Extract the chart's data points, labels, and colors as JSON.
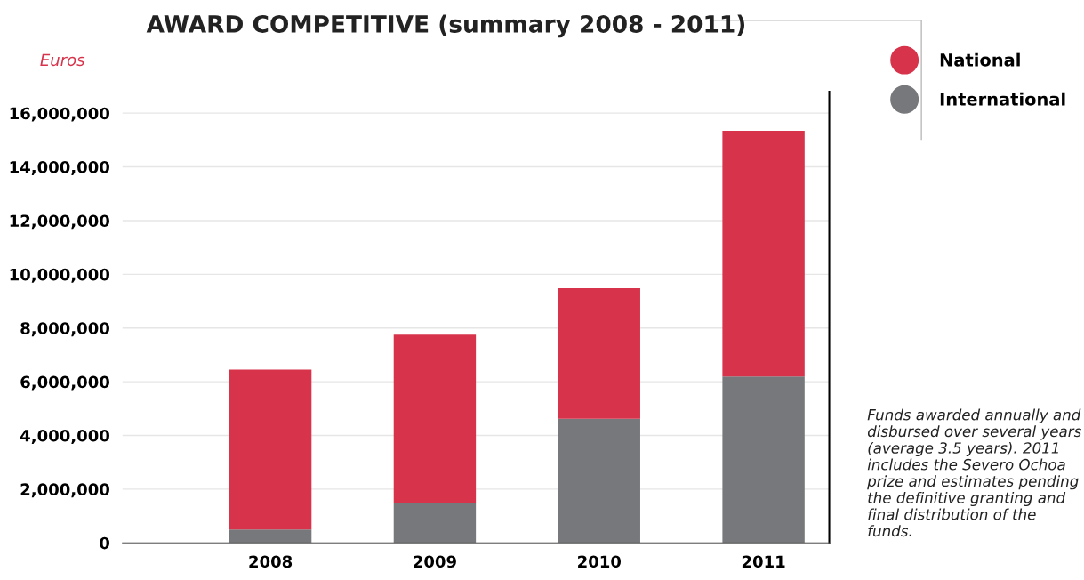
{
  "chart_data": {
    "type": "bar",
    "title": "AWARD COMPETITIVE (summary 2008 - 2011)",
    "ylabel": "Euros",
    "categories": [
      "2008",
      "2009",
      "2010",
      "2011"
    ],
    "stacked": true,
    "series": [
      {
        "name": "International",
        "color": "#77787b",
        "values": [
          500000,
          1500000,
          4620000,
          6190000
        ]
      },
      {
        "name": "National",
        "color": "#d7334a",
        "values": [
          5950000,
          6250000,
          4860000,
          9150000
        ]
      }
    ],
    "ylim": [
      0,
      16800000
    ],
    "yticks": [
      {
        "value": 0,
        "label": "0"
      },
      {
        "value": 2000000,
        "label": "2,000,000"
      },
      {
        "value": 4000000,
        "label": "4,000,000"
      },
      {
        "value": 6000000,
        "label": "6,000,000"
      },
      {
        "value": 8000000,
        "label": "8,000,000"
      },
      {
        "value": 10000000,
        "label": "10,000,000"
      },
      {
        "value": 12000000,
        "label": "12,000,000"
      },
      {
        "value": 14000000,
        "label": "14,000,000"
      },
      {
        "value": 16000000,
        "label": "16,000,000"
      }
    ],
    "grid": "y",
    "legend": "top right",
    "annotations": [
      "Funds awarded annually and disbursed over several years (average 3.5 years). 2011 includes the Severo Ochoa prize and estimates pending the definitive granting and final distribution of the funds."
    ]
  }
}
